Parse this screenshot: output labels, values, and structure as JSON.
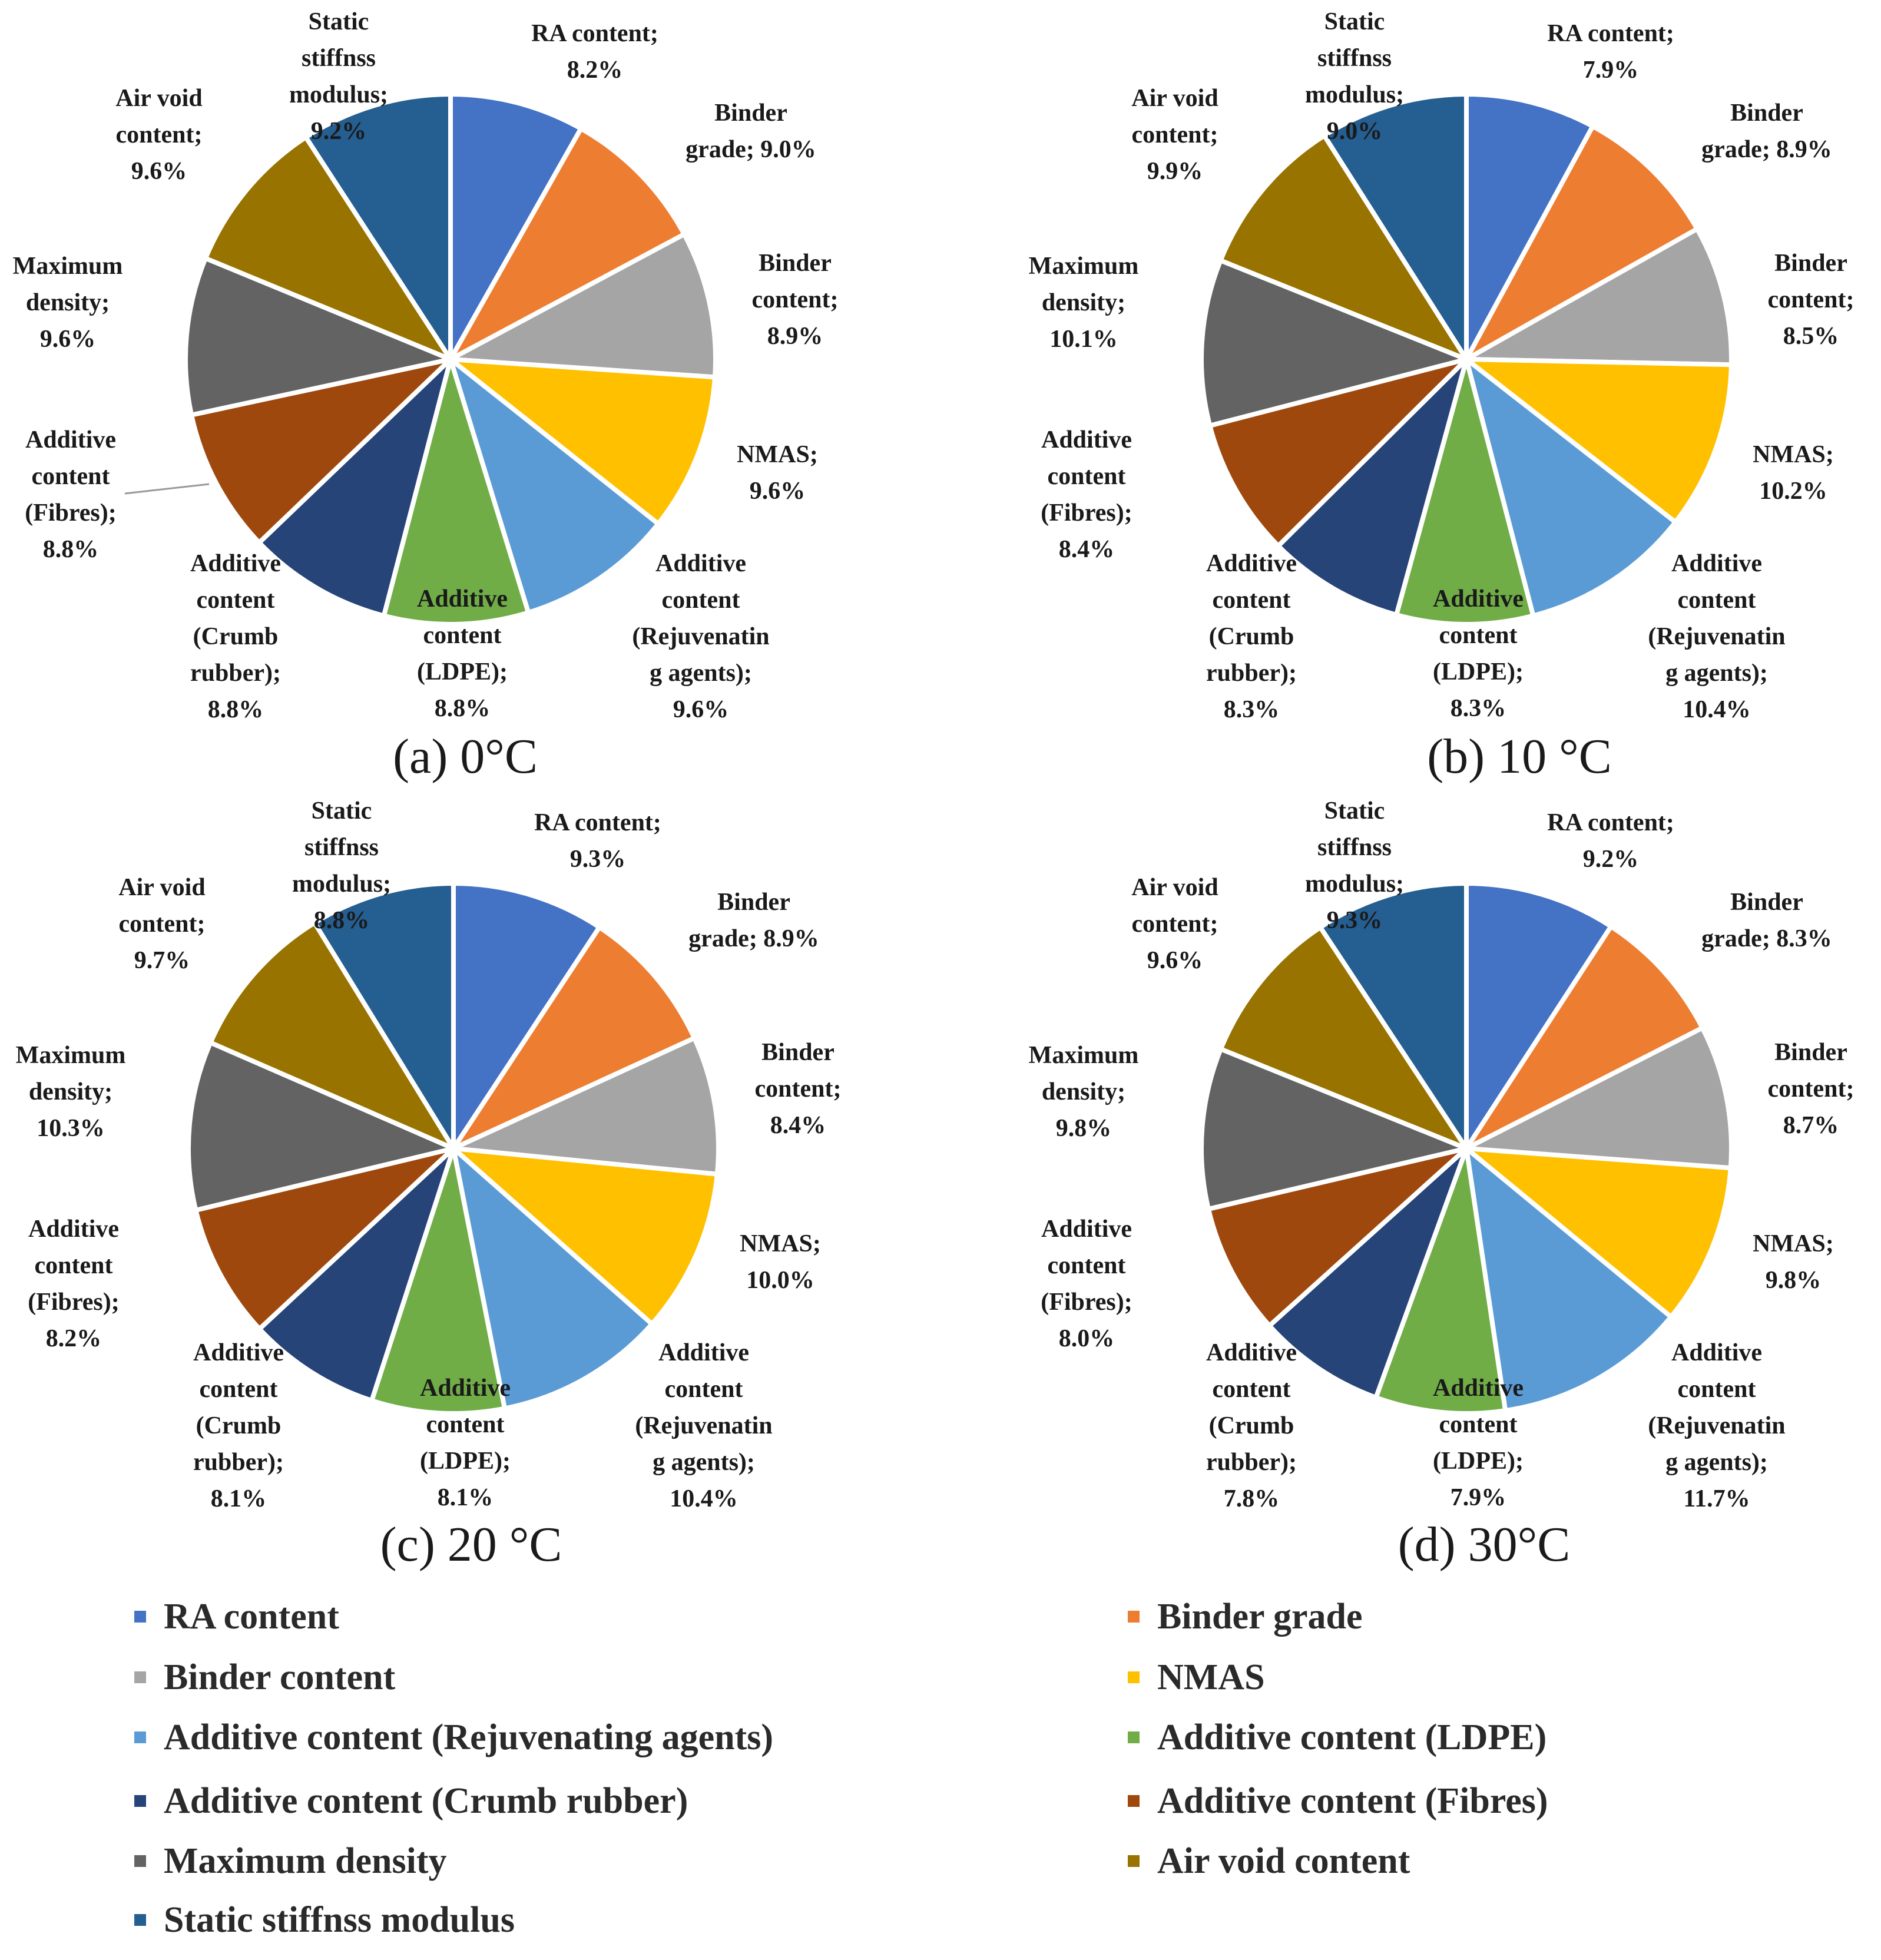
{
  "legend": {
    "items": [
      {
        "name": "RA content",
        "color": "#4472C4"
      },
      {
        "name": "Binder grade",
        "color": "#ED7D31"
      },
      {
        "name": "Binder content",
        "color": "#A5A5A5"
      },
      {
        "name": "NMAS",
        "color": "#FFC000"
      },
      {
        "name": "Additive content (Rejuvenating agents)",
        "color": "#5B9BD5"
      },
      {
        "name": "Additive content (LDPE)",
        "color": "#70AD47"
      },
      {
        "name": "Additive content (Crumb rubber)",
        "color": "#264478"
      },
      {
        "name": "Additive content (Fibres)",
        "color": "#9E480E"
      },
      {
        "name": "Maximum density",
        "color": "#636363"
      },
      {
        "name": "Air void content",
        "color": "#997300"
      },
      {
        "name": "Static stiffnss modulus",
        "color": "#255E91"
      }
    ]
  },
  "chart_data": [
    {
      "type": "pie",
      "title": "(a)  0°C",
      "categories": [
        "RA content",
        "Binder grade",
        "Binder content",
        "NMAS",
        "Additive content (Rejuvenating agents)",
        "Additive content (LDPE)",
        "Additive content (Crumb rubber)",
        "Additive content (Fibres)",
        "Maximum density",
        "Air void content",
        "Static stiffnss modulus"
      ],
      "values": [
        8.2,
        9.0,
        8.9,
        9.6,
        9.6,
        8.8,
        8.8,
        8.8,
        9.6,
        9.6,
        9.2
      ],
      "labels": [
        [
          "RA content;",
          "8.2%"
        ],
        [
          "Binder",
          "grade; 9.0%"
        ],
        [
          "Binder",
          "content;",
          "8.9%"
        ],
        [
          "NMAS;",
          "9.6%"
        ],
        [
          "Additive",
          "content",
          "(Rejuvenatin",
          "g agents);",
          "9.6%"
        ],
        [
          "Additive",
          "content",
          "(LDPE);",
          "8.8%"
        ],
        [
          "Additive",
          "content",
          "(Crumb",
          "rubber);",
          "8.8%"
        ],
        [
          "Additive",
          "content",
          "(Fibres);",
          "8.8%"
        ],
        [
          "Maximum",
          "density;",
          "9.6%"
        ],
        [
          "Air void",
          "content;",
          "9.6%"
        ],
        [
          "Static",
          "stiffnss",
          "modulus;",
          "9.2%"
        ]
      ]
    },
    {
      "type": "pie",
      "title": "(b)  10 °C",
      "categories": [
        "RA content",
        "Binder grade",
        "Binder content",
        "NMAS",
        "Additive content (Rejuvenating agents)",
        "Additive content (LDPE)",
        "Additive content (Crumb rubber)",
        "Additive content (Fibres)",
        "Maximum density",
        "Air void content",
        "Static stiffnss modulus"
      ],
      "values": [
        7.9,
        8.9,
        8.5,
        10.2,
        10.4,
        8.3,
        8.3,
        8.4,
        10.1,
        9.9,
        9.0
      ],
      "labels": [
        [
          "RA content;",
          "7.9%"
        ],
        [
          "Binder",
          "grade; 8.9%"
        ],
        [
          "Binder",
          "content;",
          "8.5%"
        ],
        [
          "NMAS;",
          "10.2%"
        ],
        [
          "Additive",
          "content",
          "(Rejuvenatin",
          "g agents);",
          "10.4%"
        ],
        [
          "Additive",
          "content",
          "(LDPE);",
          "8.3%"
        ],
        [
          "Additive",
          "content",
          "(Crumb",
          "rubber);",
          "8.3%"
        ],
        [
          "Additive",
          "content",
          "(Fibres);",
          "8.4%"
        ],
        [
          "Maximum",
          "density;",
          "10.1%"
        ],
        [
          "Air void",
          "content;",
          "9.9%"
        ],
        [
          "Static",
          "stiffnss",
          "modulus;",
          "9.0%"
        ]
      ]
    },
    {
      "type": "pie",
      "title": "(c)  20 °C",
      "categories": [
        "RA content",
        "Binder grade",
        "Binder content",
        "NMAS",
        "Additive content (Rejuvenating agents)",
        "Additive content (LDPE)",
        "Additive content (Crumb rubber)",
        "Additive content (Fibres)",
        "Maximum density",
        "Air void content",
        "Static stiffnss modulus"
      ],
      "values": [
        9.3,
        8.9,
        8.4,
        10.0,
        10.4,
        8.1,
        8.1,
        8.2,
        10.3,
        9.7,
        8.8
      ],
      "labels": [
        [
          "RA content;",
          "9.3%"
        ],
        [
          "Binder",
          "grade; 8.9%"
        ],
        [
          "Binder",
          "content;",
          "8.4%"
        ],
        [
          "NMAS;",
          "10.0%"
        ],
        [
          "Additive",
          "content",
          "(Rejuvenatin",
          "g agents);",
          "10.4%"
        ],
        [
          "Additive",
          "content",
          "(LDPE);",
          "8.1%"
        ],
        [
          "Additive",
          "content",
          "(Crumb",
          "rubber);",
          "8.1%"
        ],
        [
          "Additive",
          "content",
          "(Fibres);",
          "8.2%"
        ],
        [
          "Maximum",
          "density;",
          "10.3%"
        ],
        [
          "Air void",
          "content;",
          "9.7%"
        ],
        [
          "Static",
          "stiffnss",
          "modulus;",
          "8.8%"
        ]
      ]
    },
    {
      "type": "pie",
      "title": "(d)  30°C",
      "categories": [
        "RA content",
        "Binder grade",
        "Binder content",
        "NMAS",
        "Additive content (Rejuvenating agents)",
        "Additive content (LDPE)",
        "Additive content (Crumb rubber)",
        "Additive content (Fibres)",
        "Maximum density",
        "Air void content",
        "Static stiffnss modulus"
      ],
      "values": [
        9.2,
        8.3,
        8.7,
        9.8,
        11.7,
        7.9,
        7.8,
        8.0,
        9.8,
        9.6,
        9.3
      ],
      "labels": [
        [
          "RA content;",
          "9.2%"
        ],
        [
          "Binder",
          "grade; 8.3%"
        ],
        [
          "Binder",
          "content;",
          "8.7%"
        ],
        [
          "NMAS;",
          "9.8%"
        ],
        [
          "Additive",
          "content",
          "(Rejuvenatin",
          "g agents);",
          "11.7%"
        ],
        [
          "Additive",
          "content",
          "(LDPE);",
          "7.9%"
        ],
        [
          "Additive",
          "content",
          "(Crumb",
          "rubber);",
          "7.8%"
        ],
        [
          "Additive",
          "content",
          "(Fibres);",
          "8.0%"
        ],
        [
          "Maximum",
          "density;",
          "9.8%"
        ],
        [
          "Air void",
          "content;",
          "9.6%"
        ],
        [
          "Static",
          "stiffnss",
          "modulus;",
          "9.3%"
        ]
      ]
    }
  ]
}
